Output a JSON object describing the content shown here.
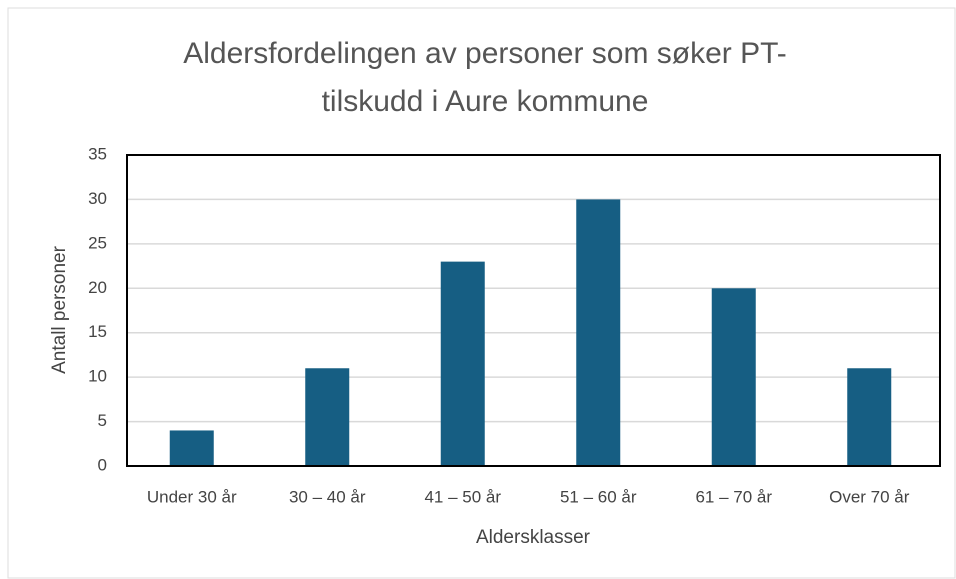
{
  "chart_data": {
    "type": "bar",
    "title": "Aldersfordelingen av personer som søker PT-tilskudd i Aure kommune",
    "x_label": "Aldersklasser",
    "y_label": "Antall personer",
    "categories": [
      "Under 30 år",
      "30 – 40 år",
      "41 – 50 år",
      "51 – 60 år",
      "61 – 70 år",
      "Over 70 år"
    ],
    "values": [
      4,
      11,
      23,
      30,
      20,
      11
    ],
    "color": "#165e83",
    "ylim": [
      0,
      35
    ],
    "yticks": [
      0,
      5,
      10,
      15,
      20,
      25,
      30,
      35
    ],
    "grid": true
  }
}
